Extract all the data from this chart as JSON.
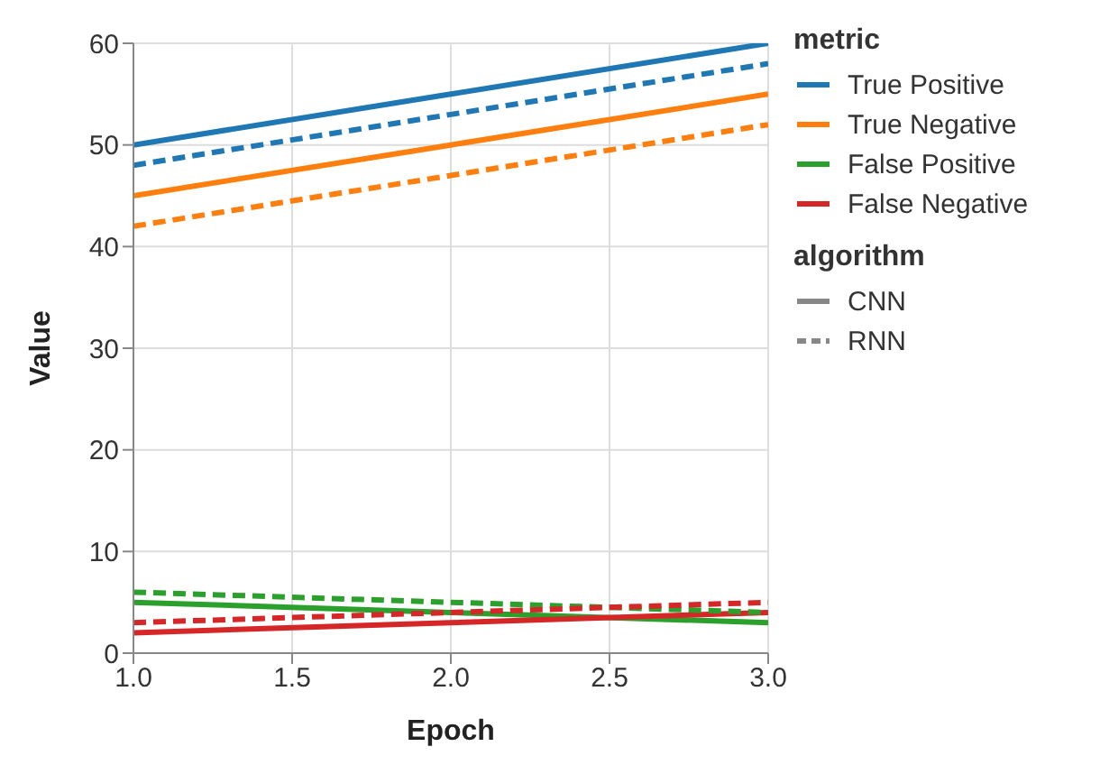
{
  "chart_data": {
    "type": "line",
    "xlabel": "Epoch",
    "ylabel": "Value",
    "legend_title": "metric",
    "x": [
      1,
      2,
      3
    ],
    "series": [
      {
        "name": "True Positive",
        "color": "#1f77b4",
        "values": [
          50,
          55,
          60
        ],
        "line_style": "solid"
      },
      {
        "name": "True Negative",
        "color": "#ff7f0e",
        "values": [
          45,
          50,
          55
        ],
        "line_style": "solid"
      },
      {
        "name": "False Positive",
        "color": "#2ca02c",
        "values": [
          5,
          4,
          3
        ],
        "line_style": "solid"
      },
      {
        "name": "False Negative",
        "color": "#d62728",
        "values": [
          2,
          3,
          4
        ],
        "line_style": "solid"
      },
      {
        "color": "#1f77b4",
        "values": [
          48,
          53,
          58
        ],
        "line_style": "dashed"
      },
      {
        "color": "#ff7f0e",
        "values": [
          42,
          47,
          52
        ],
        "line_style": "dashed"
      },
      {
        "color": "#2ca02c",
        "values": [
          6,
          5,
          4
        ],
        "line_style": "dashed"
      },
      {
        "color": "#d62728",
        "values": [
          3,
          4,
          5
        ],
        "line_style": "dashed"
      }
    ],
    "annotations": [
      "algorithm",
      "CNN",
      "RNN"
    ],
    "xlim": [
      1,
      3
    ],
    "xticks": [
      {
        "value": 1,
        "label": "1.0"
      },
      {
        "value": 1.5,
        "label": "1.5"
      },
      {
        "value": 2,
        "label": "2.0"
      },
      {
        "value": 2.5,
        "label": "2.5"
      },
      {
        "value": 3,
        "label": "3.0"
      }
    ],
    "ylim": [
      0,
      60
    ],
    "yticks": [
      0,
      10,
      20,
      30,
      40,
      50,
      60
    ],
    "grid": true,
    "legend": "right",
    "marker": "none"
  }
}
